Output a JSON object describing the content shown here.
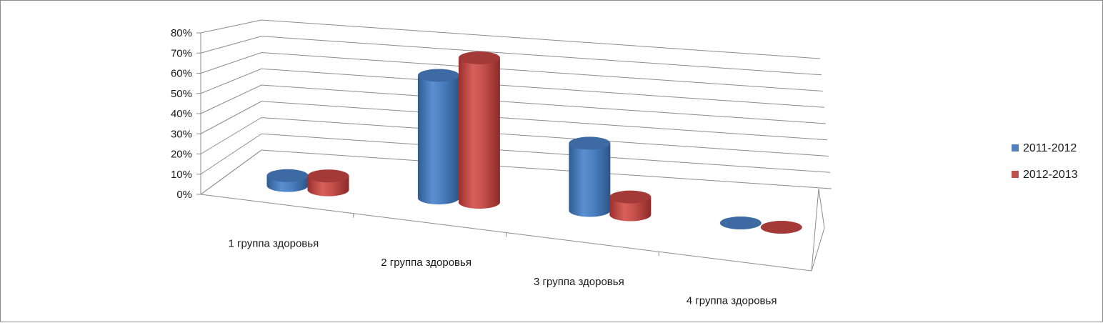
{
  "chart_data": {
    "type": "bar",
    "title": "",
    "xlabel": "",
    "ylabel": "",
    "ylim": [
      0,
      0.8
    ],
    "y_ticks": [
      "0%",
      "10%",
      "20%",
      "30%",
      "40%",
      "50%",
      "60%",
      "70%",
      "80%"
    ],
    "y_tick_values": [
      0,
      0.1,
      0.2,
      0.3,
      0.4,
      0.5,
      0.6,
      0.7,
      0.8
    ],
    "grid": true,
    "legend_position": "right",
    "view": "3d-cylinder",
    "categories": [
      "1 группа здоровья",
      "2 группа здоровья",
      "3 группа здоровья",
      "4 группа здоровья"
    ],
    "series": [
      {
        "name": "2011-2012",
        "color": "#4f81bd",
        "values": [
          0.05,
          0.62,
          0.34,
          0.0
        ]
      },
      {
        "name": "2012-2013",
        "color": "#c0504d",
        "values": [
          0.07,
          0.73,
          0.09,
          0.0
        ]
      }
    ]
  }
}
